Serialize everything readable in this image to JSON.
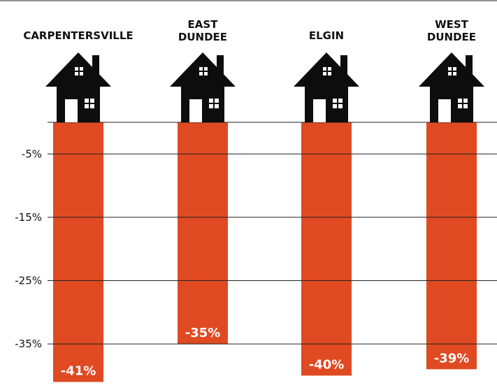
{
  "chart_data": {
    "type": "bar",
    "title": "",
    "xlabel": "",
    "ylabel": "",
    "categories": [
      [
        "CARPENTERSVILLE"
      ],
      [
        "EAST",
        "DUNDEE"
      ],
      [
        "ELGIN"
      ],
      [
        "WEST",
        "DUNDEE"
      ]
    ],
    "values": [
      -41,
      -35,
      -40,
      -39
    ],
    "value_labels": [
      "-41%",
      "-35%",
      "-40%",
      "-39%"
    ],
    "yticks": [
      -5,
      -15,
      -25,
      -35
    ],
    "ytick_labels": [
      "-5%",
      "-15%",
      "-25%",
      "-35%"
    ],
    "ylim": [
      -41,
      0
    ],
    "grid": true,
    "legend": "none",
    "icon": "house-icon",
    "colors": {
      "bar": "#e04a22",
      "house": "#0d0d0d",
      "grid": "#222222",
      "window": "#ffffff"
    }
  }
}
